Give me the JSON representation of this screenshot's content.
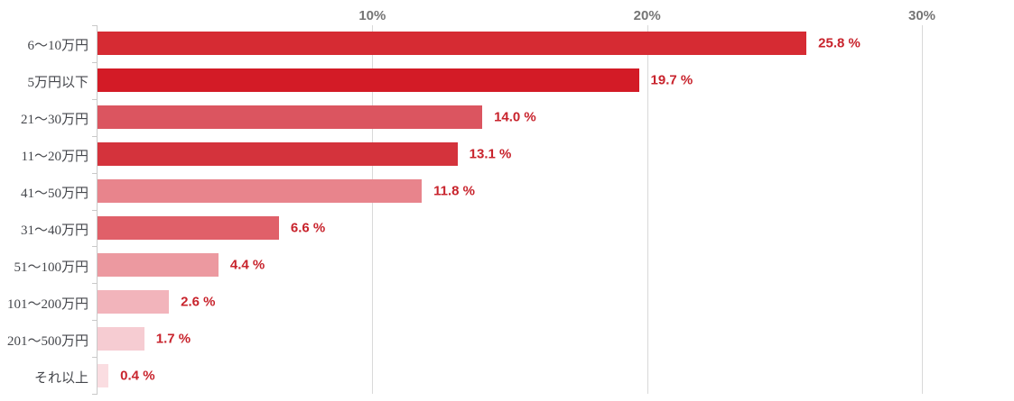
{
  "chart_data": {
    "type": "bar",
    "orientation": "horizontal",
    "title": "",
    "xlabel": "",
    "ylabel": "",
    "xlim": [
      0,
      30
    ],
    "grid": true,
    "legend": false,
    "categories": [
      "6〜10万円",
      "5万円以下",
      "21〜30万円",
      "11〜20万円",
      "41〜50万円",
      "31〜40万円",
      "51〜100万円",
      "101〜200万円",
      "201〜500万円",
      "それ以上"
    ],
    "values": [
      25.8,
      19.7,
      14.0,
      13.1,
      11.8,
      6.6,
      4.4,
      2.6,
      1.7,
      0.4
    ],
    "value_labels": [
      "25.8 %",
      "19.7 %",
      "14.0 %",
      "13.1 %",
      "11.8 %",
      "6.6 %",
      "4.4 %",
      "2.6 %",
      "1.7 %",
      "0.4 %"
    ],
    "bar_colors": [
      "#d62b33",
      "#d31b26",
      "#db5560",
      "#d4333c",
      "#e8848c",
      "#e06069",
      "#ec99a0",
      "#f2b4bb",
      "#f6ccd2",
      "#fadde1"
    ],
    "x_tick_labels": [
      "10%",
      "20%",
      "30%"
    ],
    "x_tick_values": [
      10,
      20,
      30
    ]
  },
  "colors": {
    "value_label": "#c8232c",
    "category_label": "#45474c",
    "axis_label": "#757575",
    "axis_line": "#c9c9c9",
    "gridline": "#d9d9d9",
    "background": "#ffffff"
  }
}
